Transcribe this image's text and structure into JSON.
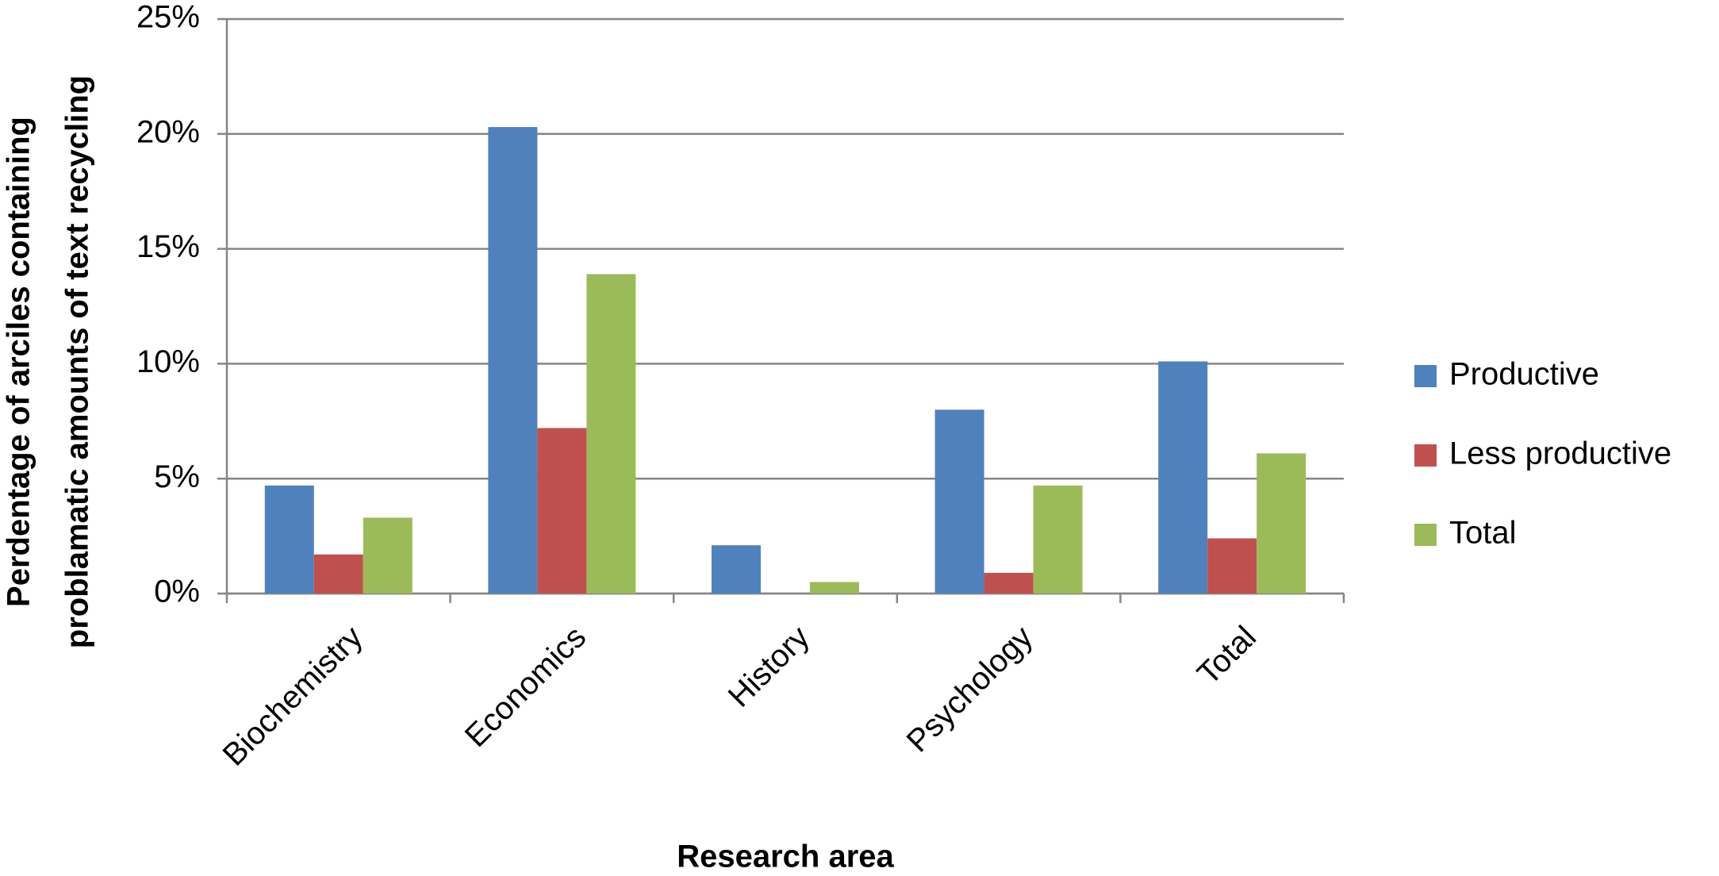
{
  "chart_data": {
    "type": "bar",
    "x_label": "Research area",
    "y_label": [
      "Perdentage of arciles containing",
      "problamatic amounts of text recycling"
    ],
    "categories": [
      "Biochemistry",
      "Economics",
      "History",
      "Psychology",
      "Total"
    ],
    "series": [
      {
        "name": "Productive",
        "color": "#4f81bd",
        "values": [
          4.7,
          20.3,
          2.1,
          8.0,
          10.1
        ]
      },
      {
        "name": "Less productive",
        "color": "#c0504d",
        "values": [
          1.7,
          7.2,
          0,
          0.9,
          2.4
        ]
      },
      {
        "name": "Total",
        "color": "#9bbb59",
        "values": [
          3.3,
          13.9,
          0.5,
          4.7,
          6.1
        ]
      }
    ],
    "ylim": [
      0,
      25
    ],
    "yticks": [
      {
        "value": 0,
        "label": "0%"
      },
      {
        "value": 5,
        "label": "5%"
      },
      {
        "value": 10,
        "label": "10%"
      },
      {
        "value": 15,
        "label": "15%"
      },
      {
        "value": 20,
        "label": "20%"
      },
      {
        "value": 25,
        "label": "25%"
      }
    ],
    "grid": true,
    "legend": "right"
  }
}
